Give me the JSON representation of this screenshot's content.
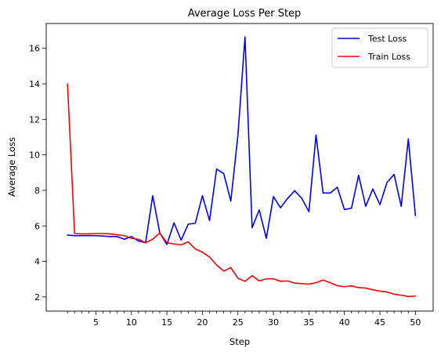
{
  "chart_data": {
    "type": "line",
    "title": "Average Loss Per Step",
    "xlabel": "Step",
    "ylabel": "Average Loss",
    "xlim": [
      -2.0,
      52.5
    ],
    "ylim": [
      1.2,
      17.4
    ],
    "x_ticks_major": [
      5,
      10,
      15,
      20,
      25,
      30,
      35,
      40,
      45,
      50
    ],
    "x_ticks_minor": [
      1,
      2,
      3,
      4,
      6,
      7,
      8,
      9,
      11,
      12,
      13,
      14,
      16,
      17,
      18,
      19,
      21,
      22,
      23,
      24,
      26,
      27,
      28,
      29,
      31,
      32,
      33,
      34,
      36,
      37,
      38,
      39,
      41,
      42,
      43,
      44,
      46,
      47,
      48,
      49
    ],
    "y_ticks": [
      2,
      4,
      6,
      8,
      10,
      12,
      14,
      16
    ],
    "grid": false,
    "legend_position": "top-right",
    "x": [
      1,
      2,
      3,
      4,
      5,
      6,
      7,
      8,
      9,
      10,
      11,
      12,
      13,
      14,
      15,
      16,
      17,
      18,
      19,
      20,
      21,
      22,
      23,
      24,
      25,
      26,
      27,
      28,
      29,
      30,
      31,
      32,
      33,
      34,
      35,
      36,
      37,
      38,
      39,
      40,
      41,
      42,
      43,
      44,
      45,
      46,
      47,
      48,
      49,
      50
    ],
    "series": [
      {
        "name": "Test Loss",
        "color": "#0000ff",
        "values": [
          5.48,
          5.45,
          5.45,
          5.45,
          5.45,
          5.43,
          5.4,
          5.4,
          5.25,
          5.4,
          5.15,
          5.05,
          7.7,
          5.6,
          4.95,
          6.17,
          5.2,
          6.1,
          6.15,
          7.7,
          6.3,
          9.2,
          8.95,
          7.4,
          11.1,
          16.65,
          5.9,
          6.9,
          5.3,
          7.65,
          7.02,
          7.55,
          7.98,
          7.55,
          6.8,
          11.12,
          7.85,
          7.85,
          8.18,
          6.92,
          7.0,
          8.85,
          7.1,
          8.08,
          7.2,
          8.45,
          8.9,
          7.1,
          10.9,
          6.58
        ]
      },
      {
        "name": "Train Loss",
        "color": "#ff0000",
        "values": [
          14.0,
          5.57,
          5.55,
          5.55,
          5.57,
          5.57,
          5.55,
          5.5,
          5.45,
          5.3,
          5.25,
          5.05,
          5.25,
          5.6,
          5.05,
          4.98,
          4.93,
          5.1,
          4.7,
          4.52,
          4.25,
          3.8,
          3.45,
          3.65,
          3.05,
          2.88,
          3.2,
          2.9,
          3.02,
          3.02,
          2.88,
          2.9,
          2.78,
          2.75,
          2.72,
          2.8,
          2.95,
          2.8,
          2.63,
          2.58,
          2.62,
          2.52,
          2.5,
          2.4,
          2.33,
          2.28,
          2.15,
          2.1,
          2.02,
          2.05
        ]
      }
    ]
  }
}
